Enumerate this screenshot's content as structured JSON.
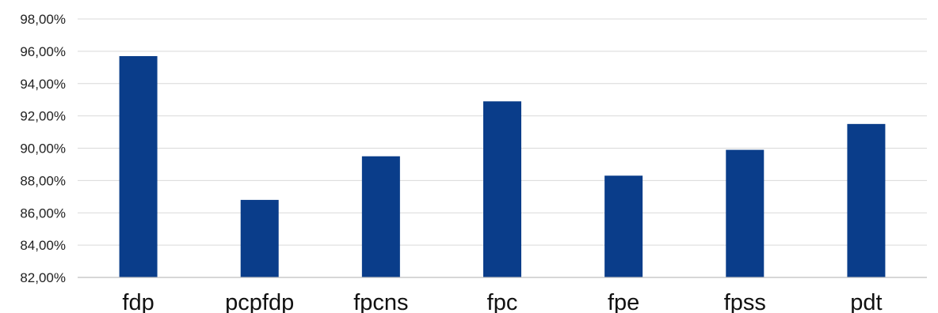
{
  "chart_data": {
    "type": "bar",
    "categories": [
      "fdp",
      "pcpfdp",
      "fpcns",
      "fpc",
      "fpe",
      "fpss",
      "pdt"
    ],
    "values": [
      95.7,
      86.8,
      89.5,
      92.9,
      88.3,
      89.9,
      91.5
    ],
    "ylim": [
      82,
      98
    ],
    "yticks": [
      82,
      84,
      86,
      88,
      90,
      92,
      94,
      96,
      98
    ],
    "ytick_labels": [
      "82,00%",
      "84,00%",
      "86,00%",
      "88,00%",
      "90,00%",
      "92,00%",
      "94,00%",
      "96,00%",
      "98,00%"
    ],
    "grid": true,
    "legend": "none",
    "bar_color": "#0a3d8a"
  }
}
